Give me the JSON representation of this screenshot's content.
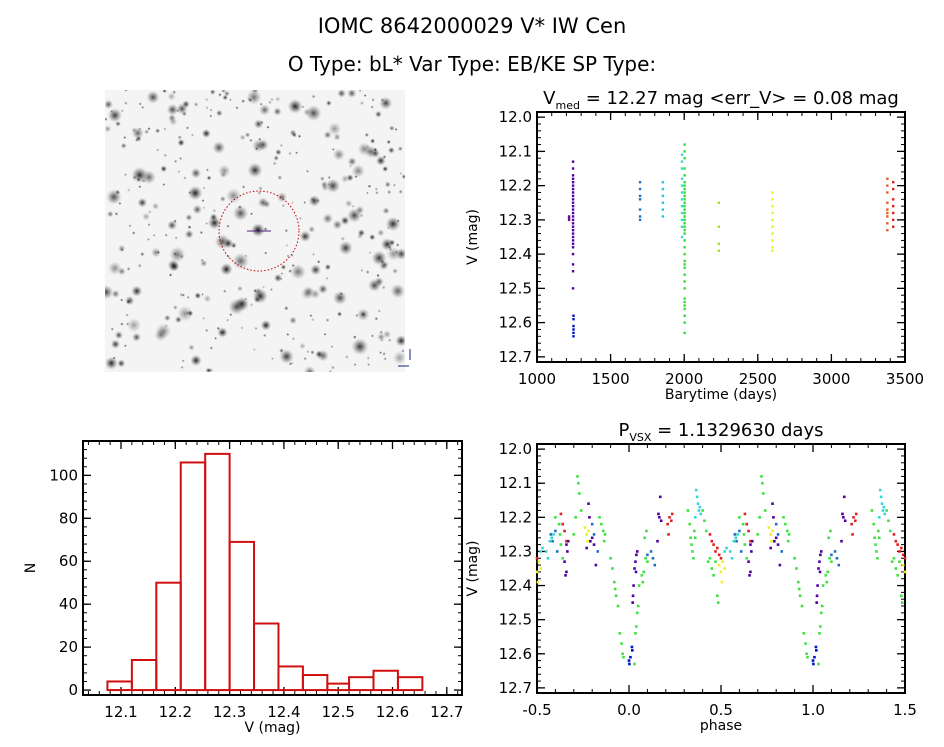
{
  "header": {
    "title": "IOMC 8642000029    V* IW Cen",
    "subtitle": "O Type: bL*  Var Type: EB/KE  SP Type:"
  },
  "image_panel": {
    "description_label": "DSS image"
  },
  "chart_data": [
    {
      "type": "scatter",
      "id": "lightcurve",
      "title_main": "V",
      "title_sub": "med",
      "title_rest": " = 12.27 mag <err_V> = 0.08 mag",
      "xlabel": "Barytime (days)",
      "ylabel": "V (mag)",
      "xlim": [
        1000,
        3500
      ],
      "ylim": [
        11.985,
        12.715
      ],
      "y_inverted": true,
      "xticks": [
        1000,
        1500,
        2000,
        2500,
        3000,
        3500
      ],
      "yticks": [
        12.0,
        12.1,
        12.2,
        12.3,
        12.4,
        12.5,
        12.6,
        12.7
      ],
      "xtick_labels": [
        "1000",
        "1500",
        "2000",
        "2500",
        "3000",
        "3500"
      ],
      "ytick_labels": [
        "12.0",
        "12.1",
        "12.2",
        "12.3",
        "12.4",
        "12.5",
        "12.6",
        "12.7"
      ],
      "series": [
        {
          "name": "purple",
          "color": "#5000a0",
          "t": 1245,
          "v": [
            12.13,
            12.15,
            12.17,
            12.18,
            12.19,
            12.2,
            12.21,
            12.22,
            12.23,
            12.24,
            12.25,
            12.26,
            12.27,
            12.28,
            12.29,
            12.3,
            12.31,
            12.32,
            12.33,
            12.34,
            12.35,
            12.36,
            12.37,
            12.38,
            12.4,
            12.43,
            12.45,
            12.5
          ]
        },
        {
          "name": "purple-early",
          "color": "#6a1090",
          "t": 1218,
          "v": [
            12.29,
            12.295,
            12.3
          ]
        },
        {
          "name": "blue",
          "color": "#0010c8",
          "t": 1248,
          "v": [
            12.58,
            12.59,
            12.61,
            12.62,
            12.63,
            12.64
          ]
        },
        {
          "name": "steelblue",
          "color": "#2070c8",
          "t": 1700,
          "v": [
            12.19,
            12.21,
            12.23,
            12.24,
            12.27,
            12.29,
            12.3
          ]
        },
        {
          "name": "cyan",
          "color": "#20c8e0",
          "t": 1855,
          "v": [
            12.19,
            12.21,
            12.23,
            12.25,
            12.27,
            12.29
          ]
        },
        {
          "name": "cyan2",
          "color": "#30e0d0",
          "t": 1985,
          "v": [
            12.11,
            12.13,
            12.15,
            12.18,
            12.2,
            12.22,
            12.24,
            12.26,
            12.28,
            12.3,
            12.32,
            12.35
          ]
        },
        {
          "name": "green",
          "color": "#30e030",
          "t": 2003,
          "v": [
            12.08,
            12.1,
            12.12,
            12.15,
            12.17,
            12.19,
            12.2,
            12.21,
            12.22,
            12.23,
            12.24,
            12.25,
            12.26,
            12.27,
            12.28,
            12.29,
            12.3,
            12.31,
            12.32,
            12.33,
            12.34,
            12.36,
            12.38,
            12.4,
            12.42,
            12.43,
            12.44,
            12.46,
            12.48,
            12.5,
            12.53,
            12.54,
            12.55,
            12.56,
            12.58,
            12.6,
            12.63
          ]
        },
        {
          "name": "yellowgreen",
          "color": "#a0e030",
          "t": 2235,
          "v": [
            12.25,
            12.32,
            12.37,
            12.39
          ]
        },
        {
          "name": "yellow",
          "color": "#f0f020",
          "t": 2600,
          "v": [
            12.22,
            12.24,
            12.26,
            12.28,
            12.3,
            12.32,
            12.34,
            12.36,
            12.38,
            12.39
          ]
        },
        {
          "name": "orange",
          "color": "#e06020",
          "t": 3380,
          "v": [
            12.18,
            12.2,
            12.22,
            12.25,
            12.27,
            12.28,
            12.29,
            12.31,
            12.33
          ]
        },
        {
          "name": "red",
          "color": "#e02020",
          "t": 3420,
          "v": [
            12.19,
            12.21,
            12.24,
            12.26,
            12.28,
            12.3,
            12.32
          ]
        }
      ]
    },
    {
      "type": "bar",
      "id": "histogram",
      "xlabel": "V (mag)",
      "ylabel": "N",
      "xlim": [
        12.03,
        12.728
      ],
      "ylim": [
        -2.3,
        116
      ],
      "xticks": [
        12.1,
        12.2,
        12.3,
        12.4,
        12.5,
        12.6,
        12.7
      ],
      "xtick_labels": [
        "12.1",
        "12.2",
        "12.3",
        "12.4",
        "12.5",
        "12.6",
        "12.7"
      ],
      "yticks": [
        0,
        20,
        40,
        60,
        80,
        100
      ],
      "ytick_labels": [
        "0",
        "20",
        "40",
        "60",
        "80",
        "100"
      ],
      "bin_edges": [
        12.075,
        12.12,
        12.165,
        12.21,
        12.255,
        12.3,
        12.345,
        12.39,
        12.435,
        12.48,
        12.52,
        12.565,
        12.61,
        12.655
      ],
      "values": [
        4,
        14,
        50,
        106,
        110,
        69,
        31,
        11,
        7,
        3,
        6,
        9,
        6
      ],
      "color": "#d01010"
    },
    {
      "type": "scatter",
      "id": "phaseplot",
      "title_main": "P",
      "title_sub": "VSX",
      "title_rest": " = 1.1329630 days",
      "xlabel": "phase",
      "ylabel": "V (mag)",
      "xlim": [
        -0.5,
        1.5
      ],
      "ylim": [
        11.985,
        12.715
      ],
      "xticks": [
        -0.5,
        0.0,
        0.5,
        1.0,
        1.5
      ],
      "xtick_labels": [
        "-0.5",
        "0.0",
        "0.5",
        "1.0",
        "1.5"
      ],
      "yticks": [
        12.0,
        12.1,
        12.2,
        12.3,
        12.4,
        12.5,
        12.6,
        12.7
      ],
      "ytick_labels": [
        "12.0",
        "12.1",
        "12.2",
        "12.3",
        "12.4",
        "12.5",
        "12.6",
        "12.7"
      ],
      "colors": {
        "p": "#5000a0",
        "b": "#0010c8",
        "s": "#2070c8",
        "c": "#30d8d8",
        "g": "#40e040",
        "y": "#f0f020",
        "r": "#e02020",
        "o": "#e06020"
      },
      "points": [
        [
          0.0,
          12.62,
          "b"
        ],
        [
          0.002,
          12.63,
          "b"
        ],
        [
          0.008,
          12.61,
          "b"
        ],
        [
          0.018,
          12.59,
          "b"
        ],
        [
          0.016,
          12.58,
          "b"
        ],
        [
          0.02,
          12.45,
          "p"
        ],
        [
          0.022,
          12.43,
          "p"
        ],
        [
          0.025,
          12.4,
          "p"
        ],
        [
          0.03,
          12.35,
          "p"
        ],
        [
          0.035,
          12.33,
          "p"
        ],
        [
          0.04,
          12.31,
          "p"
        ],
        [
          0.045,
          12.3,
          "p"
        ],
        [
          0.038,
          12.36,
          "p"
        ],
        [
          0.035,
          12.54,
          "g"
        ],
        [
          0.04,
          12.52,
          "g"
        ],
        [
          0.045,
          12.48,
          "g"
        ],
        [
          0.05,
          12.46,
          "g"
        ],
        [
          0.03,
          12.63,
          "g"
        ],
        [
          0.055,
          12.4,
          "g"
        ],
        [
          0.07,
          12.37,
          "g"
        ],
        [
          0.075,
          12.39,
          "g"
        ],
        [
          0.08,
          12.36,
          "g"
        ],
        [
          0.09,
          12.32,
          "g"
        ],
        [
          0.085,
          12.26,
          "g"
        ],
        [
          0.095,
          12.24,
          "g"
        ],
        [
          0.1,
          12.33,
          "g"
        ],
        [
          0.1,
          12.31,
          "s"
        ],
        [
          0.12,
          12.3,
          "s"
        ],
        [
          0.13,
          12.32,
          "s"
        ],
        [
          0.14,
          12.34,
          "s"
        ],
        [
          0.16,
          12.19,
          "p"
        ],
        [
          0.165,
          12.2,
          "p"
        ],
        [
          0.17,
          12.14,
          "p"
        ],
        [
          0.175,
          12.21,
          "p"
        ],
        [
          0.155,
          12.27,
          "p"
        ],
        [
          0.21,
          12.22,
          "r"
        ],
        [
          0.22,
          12.2,
          "r"
        ],
        [
          0.23,
          12.21,
          "r"
        ],
        [
          0.215,
          12.25,
          "r"
        ],
        [
          0.235,
          12.19,
          "r"
        ],
        [
          0.32,
          12.18,
          "g"
        ],
        [
          0.33,
          12.22,
          "g"
        ],
        [
          0.335,
          12.26,
          "g"
        ],
        [
          0.34,
          12.28,
          "g"
        ],
        [
          0.345,
          12.3,
          "g"
        ],
        [
          0.35,
          12.32,
          "g"
        ],
        [
          0.355,
          12.24,
          "g"
        ],
        [
          0.36,
          12.26,
          "g"
        ],
        [
          0.365,
          12.12,
          "c"
        ],
        [
          0.37,
          12.14,
          "c"
        ],
        [
          0.375,
          12.16,
          "c"
        ],
        [
          0.38,
          12.18,
          "c"
        ],
        [
          0.385,
          12.17,
          "c"
        ],
        [
          0.39,
          12.19,
          "c"
        ],
        [
          0.36,
          12.2,
          "c"
        ],
        [
          0.4,
          12.18,
          "g"
        ],
        [
          0.41,
          12.21,
          "g"
        ],
        [
          0.42,
          12.24,
          "g"
        ],
        [
          0.44,
          12.25,
          "r"
        ],
        [
          0.45,
          12.27,
          "r"
        ],
        [
          0.46,
          12.28,
          "r"
        ],
        [
          0.47,
          12.3,
          "r"
        ],
        [
          0.48,
          12.29,
          "r"
        ],
        [
          0.49,
          12.31,
          "r"
        ],
        [
          0.5,
          12.32,
          "r"
        ],
        [
          0.43,
          12.33,
          "g"
        ],
        [
          0.45,
          12.35,
          "g"
        ],
        [
          0.47,
          12.33,
          "g"
        ],
        [
          0.48,
          12.43,
          "g"
        ],
        [
          0.485,
          12.45,
          "g"
        ],
        [
          0.46,
          12.37,
          "g"
        ],
        [
          0.44,
          12.32,
          "g"
        ],
        [
          0.49,
          12.34,
          "y"
        ],
        [
          0.5,
          12.36,
          "y"
        ],
        [
          0.505,
          12.39,
          "y"
        ],
        [
          0.51,
          12.33,
          "y"
        ],
        [
          0.52,
          12.35,
          "y"
        ],
        [
          0.52,
          12.3,
          "c"
        ],
        [
          0.53,
          12.29,
          "c"
        ],
        [
          0.55,
          12.3,
          "c"
        ],
        [
          0.56,
          12.32,
          "c"
        ],
        [
          0.57,
          12.27,
          "c"
        ],
        [
          0.58,
          12.26,
          "c"
        ],
        [
          0.59,
          12.25,
          "c"
        ],
        [
          0.575,
          12.25,
          "s"
        ],
        [
          0.585,
          12.27,
          "s"
        ],
        [
          0.6,
          12.24,
          "s"
        ],
        [
          0.61,
          12.3,
          "s"
        ],
        [
          0.6,
          12.2,
          "g"
        ],
        [
          0.62,
          12.22,
          "g"
        ],
        [
          0.63,
          12.28,
          "g"
        ],
        [
          0.64,
          12.32,
          "g"
        ],
        [
          0.625,
          12.25,
          "g"
        ],
        [
          0.64,
          12.22,
          "r"
        ],
        [
          0.65,
          12.24,
          "r"
        ],
        [
          0.66,
          12.27,
          "r"
        ],
        [
          0.63,
          12.19,
          "r"
        ],
        [
          0.66,
          12.28,
          "p"
        ],
        [
          0.665,
          12.3,
          "p"
        ],
        [
          0.67,
          12.27,
          "p"
        ],
        [
          0.65,
          12.33,
          "p"
        ],
        [
          0.66,
          12.36,
          "p"
        ],
        [
          0.655,
          12.37,
          "p"
        ],
        [
          0.7,
          12.25,
          "g"
        ],
        [
          0.71,
          12.2,
          "g"
        ],
        [
          0.72,
          12.08,
          "g"
        ],
        [
          0.725,
          12.1,
          "g"
        ],
        [
          0.73,
          12.13,
          "g"
        ],
        [
          0.74,
          12.18,
          "g"
        ],
        [
          0.76,
          12.23,
          "y"
        ],
        [
          0.77,
          12.25,
          "y"
        ],
        [
          0.775,
          12.27,
          "y"
        ],
        [
          0.78,
          12.24,
          "y"
        ],
        [
          0.77,
          12.29,
          "p"
        ],
        [
          0.78,
          12.16,
          "p"
        ],
        [
          0.79,
          12.27,
          "p"
        ],
        [
          0.8,
          12.26,
          "p"
        ],
        [
          0.81,
          12.28,
          "p"
        ],
        [
          0.82,
          12.34,
          "p"
        ],
        [
          0.785,
          12.2,
          "p"
        ],
        [
          0.8,
          12.22,
          "s"
        ],
        [
          0.81,
          12.25,
          "s"
        ],
        [
          0.83,
          12.3,
          "s"
        ],
        [
          0.84,
          12.2,
          "g"
        ],
        [
          0.85,
          12.22,
          "g"
        ],
        [
          0.86,
          12.24,
          "g"
        ],
        [
          0.87,
          12.25,
          "g"
        ],
        [
          0.865,
          12.27,
          "g"
        ],
        [
          0.9,
          12.32,
          "g"
        ],
        [
          0.91,
          12.35,
          "g"
        ],
        [
          0.92,
          12.39,
          "g"
        ],
        [
          0.925,
          12.41,
          "g"
        ],
        [
          0.93,
          12.43,
          "g"
        ],
        [
          0.94,
          12.46,
          "g"
        ],
        [
          0.95,
          12.54,
          "g"
        ],
        [
          0.96,
          12.57,
          "g"
        ],
        [
          0.965,
          12.6,
          "g"
        ],
        [
          0.97,
          12.61,
          "g"
        ]
      ]
    }
  ]
}
